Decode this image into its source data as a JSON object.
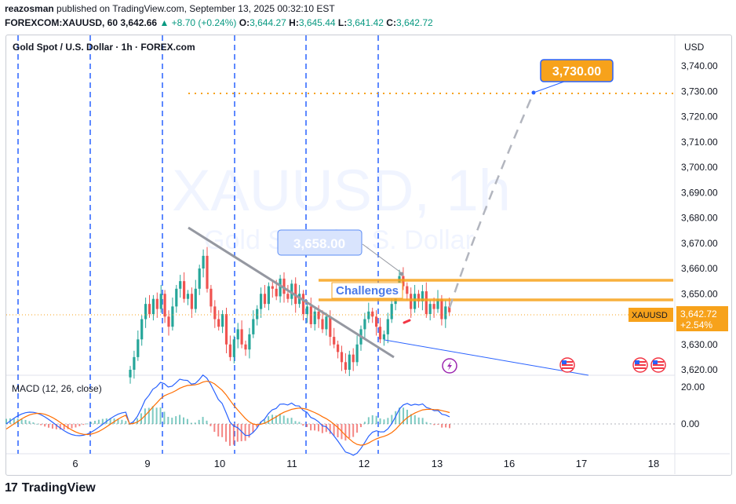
{
  "header": {
    "author": "reazosman",
    "published": "published on TradingView.com, September 13, 2025 00:32:10 EST",
    "symbol": "FOREXCOM:XAUUSD, 60",
    "last": "3,642.66",
    "change": "+8.70 (+0.24%)",
    "open_label": "O:",
    "open": "3,644.27",
    "high_label": "H:",
    "high": "3,645.44",
    "low_label": "L:",
    "low": "3,641.42",
    "close_label": "C:",
    "close": "3,642.72"
  },
  "chart_title": "Gold Spot / U.S. Dollar · 1h · FOREX.com",
  "watermark": {
    "symbol": "XAUUSD, 1h",
    "name": "Gold Spot / U.S. Dollar"
  },
  "currency": "USD",
  "macd_title": "MACD (12, 26, close)",
  "logo": {
    "mark": "17",
    "text": "TradingView"
  },
  "colors": {
    "bull": "#26a69a",
    "bear": "#ef5350",
    "accent_orange": "#f7a21b",
    "blue": "#2962ff",
    "grey_line": "#9598a1"
  },
  "annotations": {
    "target_label": "3,730.00",
    "level_label": "3,658.00",
    "challenges_label": "Challenges",
    "price_badge_symbol": "XAUUSD",
    "price_badge_price": "3,642.72",
    "price_badge_change": "+2.54%"
  },
  "chart_data": [
    {
      "type": "candlestick",
      "ylim": [
        3615,
        3745
      ],
      "y_ticks": [
        3620,
        3630,
        3640,
        3650,
        3660,
        3670,
        3680,
        3690,
        3700,
        3710,
        3720,
        3730,
        3740
      ],
      "y_tick_labels": [
        "3,620.00",
        "3,630.00",
        "3,640.00",
        "3,650.00",
        "3,660.00",
        "3,670.00",
        "3,680.00",
        "3,690.00",
        "3,700.00",
        "3,710.00",
        "3,720.00",
        "3,730.00",
        "3,740.00"
      ],
      "x_tick_labels": [
        "6",
        "9",
        "10",
        "11",
        "12",
        "13",
        "16",
        "17",
        "18"
      ],
      "levels": [
        3730,
        3656,
        3648
      ],
      "last_price": 3642.72,
      "projection": [
        [
          3658,
          3730
        ]
      ],
      "ohlc_closes": [
        3620,
        3625,
        3632,
        3640,
        3646,
        3642,
        3648,
        3644,
        3650,
        3641,
        3637,
        3645,
        3652,
        3655,
        3648,
        3650,
        3644,
        3652,
        3660,
        3665,
        3652,
        3645,
        3640,
        3637,
        3642,
        3630,
        3625,
        3632,
        3636,
        3630,
        3628,
        3634,
        3640,
        3644,
        3650,
        3646,
        3653,
        3652,
        3649,
        3656,
        3650,
        3648,
        3654,
        3646,
        3650,
        3642,
        3645,
        3638,
        3643,
        3640,
        3636,
        3641,
        3633,
        3630,
        3627,
        3623,
        3620,
        3626,
        3623,
        3630,
        3636,
        3640,
        3643,
        3641,
        3637,
        3632,
        3634,
        3640,
        3646,
        3652,
        3657,
        3653,
        3650,
        3644,
        3650,
        3647,
        3651,
        3642,
        3646,
        3644,
        3648,
        3640,
        3645,
        3642.72
      ]
    },
    {
      "type": "line",
      "name": "MACD (12, 26, close)",
      "ylim": [
        -8,
        26
      ],
      "y_ticks": [
        0,
        20
      ],
      "y_tick_labels": [
        "0.00",
        "20.00"
      ]
    }
  ]
}
